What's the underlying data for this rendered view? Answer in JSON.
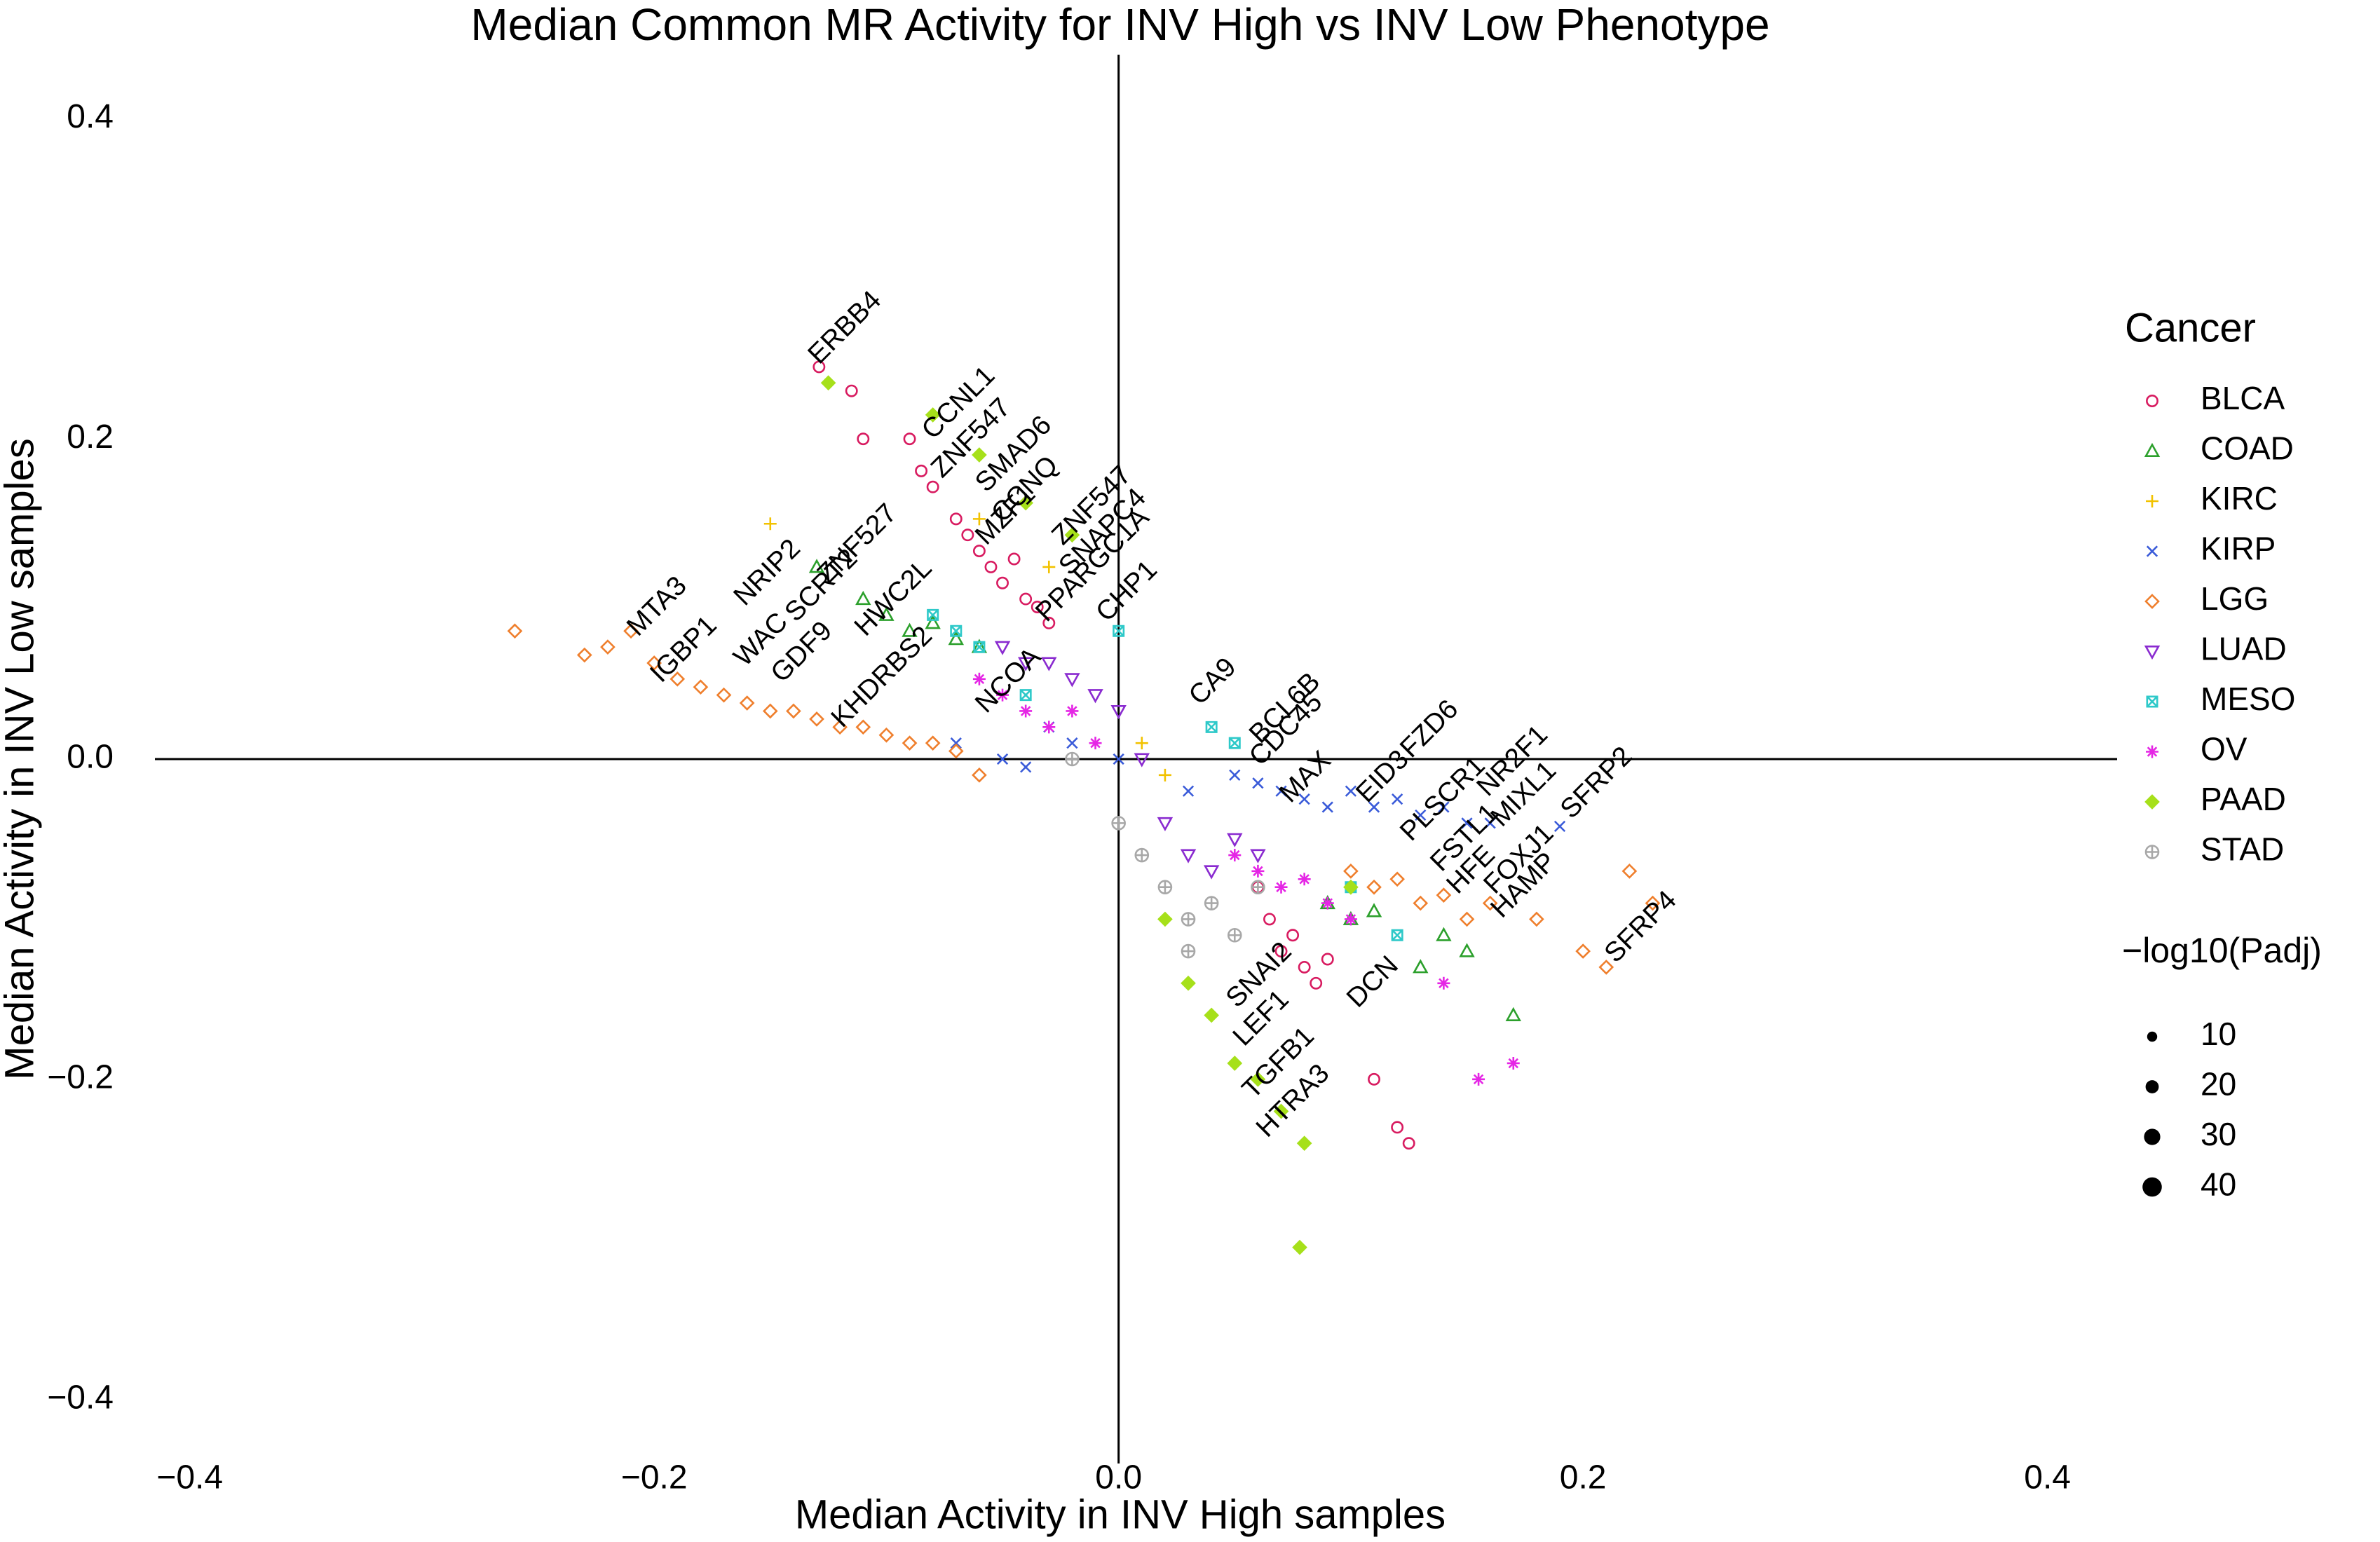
{
  "chart_data": {
    "type": "scatter",
    "title": "Median Common MR Activity for INV High vs INV Low Phenotype",
    "x_label": "Median Activity in INV High samples",
    "y_label": "Median Activity in INV Low samples",
    "xlim": [
      -0.415,
      0.43
    ],
    "ylim": [
      -0.44,
      0.44
    ],
    "xticks": [
      {
        "value": -0.4,
        "label": "−0.4"
      },
      {
        "value": -0.2,
        "label": "−0.2"
      },
      {
        "value": 0,
        "label": "0.0"
      },
      0.2,
      0.4
    ],
    "yticks": [
      {
        "value": -0.4,
        "label": "−0.4"
      },
      {
        "value": -0.2,
        "label": "−0.2"
      },
      {
        "value": 0,
        "label": "0.0"
      },
      0.2,
      0.4
    ],
    "grid": false,
    "legend_title": "Cancer",
    "series": [
      {
        "name": "BLCA",
        "color": "#d81b60",
        "marker": "circle",
        "x": [
          -0.129,
          -0.115,
          -0.11,
          -0.09,
          -0.085,
          -0.08,
          -0.07,
          -0.065,
          -0.06,
          -0.055,
          -0.05,
          -0.045,
          -0.04,
          -0.035,
          -0.03,
          0.06,
          0.065,
          0.07,
          0.075,
          0.08,
          0.085,
          0.09,
          0.11,
          0.12,
          0.125
        ],
        "y": [
          0.245,
          0.23,
          0.2,
          0.2,
          0.18,
          0.17,
          0.15,
          0.14,
          0.13,
          0.12,
          0.11,
          0.125,
          0.1,
          0.095,
          0.085,
          -0.08,
          -0.1,
          -0.12,
          -0.11,
          -0.13,
          -0.14,
          -0.125,
          -0.2,
          -0.23,
          -0.24
        ]
      },
      {
        "name": "COAD",
        "color": "#2ca02c",
        "marker": "triangle",
        "x": [
          -0.13,
          -0.11,
          -0.1,
          -0.09,
          -0.08,
          -0.07,
          -0.06,
          0.09,
          0.1,
          0.11,
          0.13,
          0.14,
          0.15,
          0.17
        ],
        "y": [
          0.12,
          0.1,
          0.09,
          0.08,
          0.085,
          0.075,
          0.07,
          -0.09,
          -0.1,
          -0.095,
          -0.13,
          -0.11,
          -0.12,
          -0.16
        ]
      },
      {
        "name": "KIRC",
        "color": "#f2c200",
        "marker": "plus",
        "x": [
          -0.15,
          -0.06,
          -0.03,
          0.01,
          0.02
        ],
        "y": [
          0.147,
          0.15,
          0.12,
          0.01,
          -0.01
        ]
      },
      {
        "name": "KIRP",
        "color": "#3a5bd9",
        "marker": "cross",
        "x": [
          -0.07,
          -0.05,
          -0.04,
          -0.03,
          -0.02,
          0.0,
          0.03,
          0.05,
          0.06,
          0.07,
          0.08,
          0.09,
          0.1,
          0.11,
          0.12,
          0.13,
          0.14,
          0.15,
          0.16,
          0.19
        ],
        "y": [
          0.01,
          0.0,
          -0.005,
          0.02,
          0.01,
          0.0,
          -0.02,
          -0.01,
          -0.015,
          -0.02,
          -0.025,
          -0.03,
          -0.02,
          -0.03,
          -0.025,
          -0.035,
          -0.03,
          -0.04,
          -0.04,
          -0.042
        ]
      },
      {
        "name": "LGG",
        "color": "#ef7f2d",
        "marker": "diamond",
        "x": [
          -0.26,
          -0.23,
          -0.22,
          -0.21,
          -0.2,
          -0.19,
          -0.18,
          -0.17,
          -0.16,
          -0.15,
          -0.14,
          -0.13,
          -0.12,
          -0.11,
          -0.1,
          -0.09,
          -0.08,
          -0.07,
          -0.06,
          0.1,
          0.11,
          0.12,
          0.13,
          0.14,
          0.15,
          0.16,
          0.18,
          0.2,
          0.21,
          0.22,
          0.23
        ],
        "y": [
          0.08,
          0.065,
          0.07,
          0.08,
          0.06,
          0.05,
          0.045,
          0.04,
          0.035,
          0.03,
          0.03,
          0.025,
          0.02,
          0.02,
          0.015,
          0.01,
          0.01,
          0.005,
          -0.01,
          -0.07,
          -0.08,
          -0.075,
          -0.09,
          -0.085,
          -0.1,
          -0.09,
          -0.1,
          -0.12,
          -0.13,
          -0.07,
          -0.09
        ]
      },
      {
        "name": "LUAD",
        "color": "#8a2bd0",
        "marker": "triangle-down",
        "x": [
          -0.05,
          -0.04,
          -0.03,
          -0.02,
          -0.01,
          0.0,
          0.01,
          0.02,
          0.03,
          0.04,
          0.05,
          0.06
        ],
        "y": [
          0.07,
          0.06,
          0.06,
          0.05,
          0.04,
          0.03,
          0.0,
          -0.04,
          -0.06,
          -0.07,
          -0.05,
          -0.06
        ]
      },
      {
        "name": "MESO",
        "color": "#2ec9c9",
        "marker": "square-cross",
        "x": [
          -0.08,
          -0.07,
          -0.06,
          -0.04,
          0.0,
          0.04,
          0.05,
          0.1,
          0.12
        ],
        "y": [
          0.09,
          0.08,
          0.07,
          0.04,
          0.08,
          0.02,
          0.01,
          -0.08,
          -0.11
        ]
      },
      {
        "name": "OV",
        "color": "#e526e5",
        "marker": "asterisk",
        "x": [
          -0.06,
          -0.05,
          -0.04,
          -0.03,
          -0.02,
          -0.01,
          0.05,
          0.06,
          0.07,
          0.08,
          0.09,
          0.1,
          0.14,
          0.155,
          0.17
        ],
        "y": [
          0.05,
          0.04,
          0.03,
          0.02,
          0.03,
          0.01,
          -0.06,
          -0.07,
          -0.08,
          -0.075,
          -0.09,
          -0.1,
          -0.14,
          -0.2,
          -0.19
        ]
      },
      {
        "name": "PAAD",
        "color": "#a6e01a",
        "marker": "diamond-filled",
        "x": [
          -0.125,
          -0.08,
          -0.06,
          -0.04,
          -0.02,
          0.02,
          0.03,
          0.04,
          0.05,
          0.06,
          0.07,
          0.08,
          0.1,
          0.078
        ],
        "y": [
          0.235,
          0.215,
          0.19,
          0.16,
          0.14,
          -0.1,
          -0.14,
          -0.16,
          -0.19,
          -0.2,
          -0.22,
          -0.24,
          -0.08,
          -0.305
        ]
      },
      {
        "name": "STAD",
        "color": "#a8a8a8",
        "marker": "circle-plus",
        "x": [
          0.0,
          0.01,
          0.02,
          0.03,
          0.04,
          0.05,
          0.06,
          -0.02,
          0.03
        ],
        "y": [
          -0.04,
          -0.06,
          -0.08,
          -0.1,
          -0.09,
          -0.11,
          -0.08,
          0.0,
          -0.12
        ]
      }
    ],
    "size_legend": {
      "title": "−log10(Padj)",
      "values": [
        10,
        20,
        30,
        40
      ]
    },
    "labels": [
      {
        "text": "ERBB4",
        "x": -0.129,
        "y": 0.246
      },
      {
        "text": "CCNL1",
        "x": -0.08,
        "y": 0.199
      },
      {
        "text": "ZNF547",
        "x": -0.076,
        "y": 0.175
      },
      {
        "text": "SMAD6",
        "x": -0.057,
        "y": 0.166
      },
      {
        "text": "CCNQ",
        "x": -0.05,
        "y": 0.147
      },
      {
        "text": "MZF1",
        "x": -0.057,
        "y": 0.133
      },
      {
        "text": "ZNF547",
        "x": -0.024,
        "y": 0.133
      },
      {
        "text": "SNAPC4",
        "x": -0.021,
        "y": 0.114
      },
      {
        "text": "ZNF527",
        "x": -0.125,
        "y": 0.109
      },
      {
        "text": "NRIP2",
        "x": -0.161,
        "y": 0.095
      },
      {
        "text": "MTA3",
        "x": -0.207,
        "y": 0.076
      },
      {
        "text": "IGBP1",
        "x": -0.197,
        "y": 0.047
      },
      {
        "text": "SCRT2",
        "x": -0.139,
        "y": 0.085
      },
      {
        "text": "WAC",
        "x": -0.161,
        "y": 0.057
      },
      {
        "text": "GDF9",
        "x": -0.145,
        "y": 0.047
      },
      {
        "text": "HWC2L",
        "x": -0.109,
        "y": 0.076
      },
      {
        "text": "KHDRBS2",
        "x": -0.119,
        "y": 0.019
      },
      {
        "text": "CHP1",
        "x": -0.005,
        "y": 0.085
      },
      {
        "text": "PPARGC1A",
        "x": -0.031,
        "y": 0.085
      },
      {
        "text": "NCOA",
        "x": -0.057,
        "y": 0.028
      },
      {
        "text": "CA9",
        "x": 0.035,
        "y": 0.033
      },
      {
        "text": "BCL6B",
        "x": 0.061,
        "y": 0.009
      },
      {
        "text": "CDC45",
        "x": 0.061,
        "y": -0.005
      },
      {
        "text": "MAX",
        "x": 0.074,
        "y": -0.028
      },
      {
        "text": "EID3",
        "x": 0.107,
        "y": -0.028
      },
      {
        "text": "FZD6",
        "x": 0.126,
        "y": 0
      },
      {
        "text": "PLSCR1",
        "x": 0.126,
        "y": -0.052
      },
      {
        "text": "NR2F1",
        "x": 0.159,
        "y": -0.024
      },
      {
        "text": "MIXL1",
        "x": 0.165,
        "y": -0.043
      },
      {
        "text": "SFRP2",
        "x": 0.195,
        "y": -0.038
      },
      {
        "text": "FSTL1",
        "x": 0.139,
        "y": -0.071
      },
      {
        "text": "HFE",
        "x": 0.146,
        "y": -0.085
      },
      {
        "text": "FOXJ1",
        "x": 0.162,
        "y": -0.085
      },
      {
        "text": "HAMP",
        "x": 0.165,
        "y": -0.1
      },
      {
        "text": "SFRP4",
        "x": 0.214,
        "y": -0.128
      },
      {
        "text": "SNAI2",
        "x": 0.051,
        "y": -0.156
      },
      {
        "text": "LEF1",
        "x": 0.054,
        "y": -0.18
      },
      {
        "text": "TGFB1",
        "x": 0.058,
        "y": -0.213
      },
      {
        "text": "HTRA3",
        "x": 0.064,
        "y": -0.237
      },
      {
        "text": "DCN",
        "x": 0.103,
        "y": -0.156
      }
    ]
  }
}
